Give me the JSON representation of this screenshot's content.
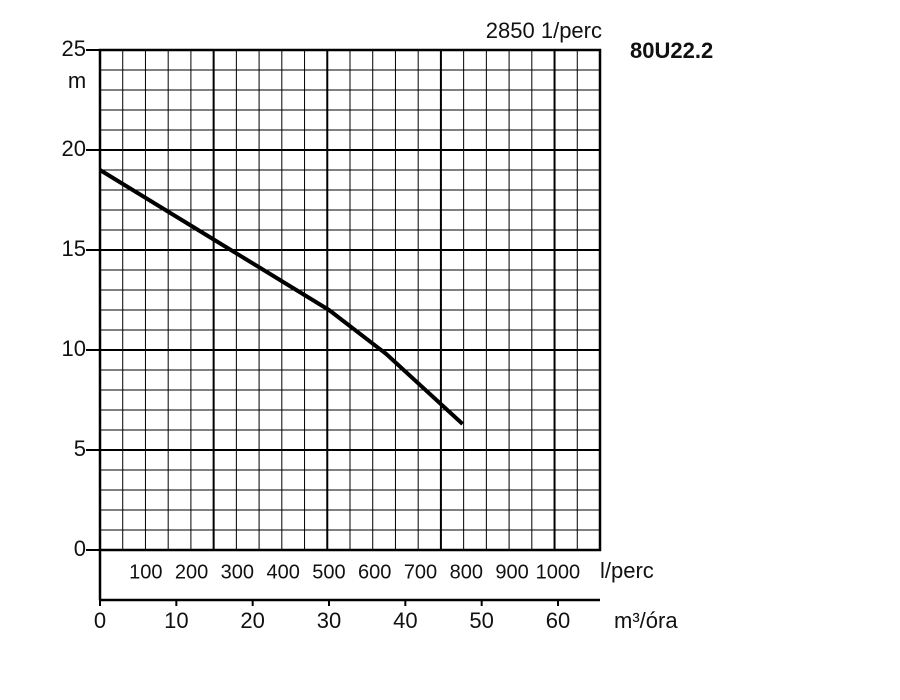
{
  "chart_data": {
    "type": "line",
    "title": "80U22.2",
    "subtitle": "2850 1/perc",
    "y_label": "m",
    "x_label": "m³/óra",
    "x2_label": "l/perc",
    "x": [
      0,
      15,
      30,
      37.5,
      47.5
    ],
    "series": [
      {
        "color": "#000000",
        "values": [
          19,
          15.5,
          12,
          9.8,
          6.3
        ]
      }
    ],
    "xlim": [
      0,
      65.5
    ],
    "xticks": [
      0,
      10,
      20,
      30,
      40,
      50,
      60
    ],
    "x2lim": [
      0,
      1092
    ],
    "x2ticks": [
      100,
      200,
      300,
      400,
      500,
      600,
      700,
      800,
      900,
      1000
    ],
    "ylim": [
      0,
      25
    ],
    "yticks": [
      0,
      5,
      10,
      15,
      20,
      25
    ],
    "grid": true
  }
}
